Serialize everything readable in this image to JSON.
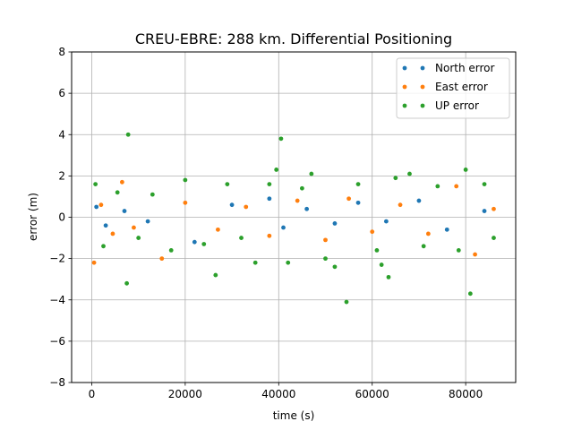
{
  "chart_data": {
    "type": "scatter",
    "title": "CREU-EBRE: 288 km. Differential Positioning",
    "xlabel": "time (s)",
    "ylabel": "error (m)",
    "xlim": [
      -4300,
      90700
    ],
    "ylim": [
      -8,
      8
    ],
    "grid": true,
    "legend_position": "top-right",
    "x_ticks": [
      0,
      20000,
      40000,
      60000,
      80000
    ],
    "y_ticks": [
      -8,
      -6,
      -4,
      -2,
      0,
      2,
      4,
      6,
      8
    ],
    "x_tick_labels": [
      "0",
      "20000",
      "40000",
      "60000",
      "80000"
    ],
    "y_tick_labels": [
      "−8",
      "−6",
      "−4",
      "−2",
      "0",
      "2",
      "4",
      "6",
      "8"
    ],
    "series": [
      {
        "name": "North error",
        "color": "#1f77b4",
        "points": [
          [
            1000,
            0.5
          ],
          [
            3000,
            -0.4
          ],
          [
            7000,
            0.3
          ],
          [
            12000,
            -0.2
          ],
          [
            22000,
            -1.2
          ],
          [
            30000,
            0.6
          ],
          [
            38000,
            0.9
          ],
          [
            41000,
            -0.5
          ],
          [
            46000,
            0.4
          ],
          [
            52000,
            -0.3
          ],
          [
            57000,
            0.7
          ],
          [
            63000,
            -0.2
          ],
          [
            70000,
            0.8
          ],
          [
            76000,
            -0.6
          ],
          [
            84000,
            0.3
          ]
        ]
      },
      {
        "name": "East error",
        "color": "#ff7f0e",
        "points": [
          [
            500,
            -2.2
          ],
          [
            2000,
            0.6
          ],
          [
            4500,
            -0.8
          ],
          [
            6500,
            1.7
          ],
          [
            9000,
            -0.5
          ],
          [
            15000,
            -2.0
          ],
          [
            20000,
            0.7
          ],
          [
            27000,
            -0.6
          ],
          [
            33000,
            0.5
          ],
          [
            38000,
            -0.9
          ],
          [
            44000,
            0.8
          ],
          [
            50000,
            -1.1
          ],
          [
            55000,
            0.9
          ],
          [
            60000,
            -0.7
          ],
          [
            66000,
            0.6
          ],
          [
            72000,
            -0.8
          ],
          [
            78000,
            1.5
          ],
          [
            82000,
            -1.8
          ],
          [
            86000,
            0.4
          ]
        ]
      },
      {
        "name": "UP error",
        "color": "#2ca02c",
        "points": [
          [
            800,
            1.6
          ],
          [
            2500,
            -1.4
          ],
          [
            5500,
            1.2
          ],
          [
            7500,
            -3.2
          ],
          [
            7800,
            4.0
          ],
          [
            10000,
            -1.0
          ],
          [
            13000,
            1.1
          ],
          [
            17000,
            -1.6
          ],
          [
            20000,
            1.8
          ],
          [
            24000,
            -1.3
          ],
          [
            26500,
            -2.8
          ],
          [
            29000,
            1.6
          ],
          [
            32000,
            -1.0
          ],
          [
            35000,
            -2.2
          ],
          [
            38000,
            1.6
          ],
          [
            39500,
            2.3
          ],
          [
            40500,
            3.8
          ],
          [
            42000,
            -2.2
          ],
          [
            45000,
            1.4
          ],
          [
            47000,
            2.1
          ],
          [
            50000,
            -2.0
          ],
          [
            52000,
            -2.4
          ],
          [
            54500,
            -4.1
          ],
          [
            57000,
            1.6
          ],
          [
            61000,
            -1.6
          ],
          [
            62000,
            -2.3
          ],
          [
            63500,
            -2.9
          ],
          [
            65000,
            1.9
          ],
          [
            68000,
            2.1
          ],
          [
            71000,
            -1.4
          ],
          [
            74000,
            1.5
          ],
          [
            78500,
            -1.6
          ],
          [
            80000,
            2.3
          ],
          [
            81000,
            -3.7
          ],
          [
            84000,
            1.6
          ],
          [
            86000,
            -1.0
          ]
        ]
      }
    ]
  }
}
